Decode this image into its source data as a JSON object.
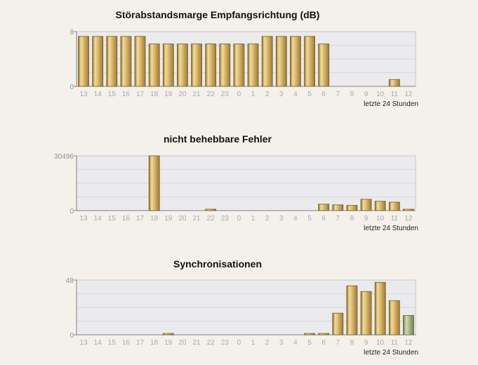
{
  "chart_data": [
    {
      "type": "bar",
      "title": "Störabstandsmarge Empfangsrichtung (dB)",
      "xlabel": "letzte 24 Stunden",
      "ytick_labels": [
        "8",
        "0"
      ],
      "ylim": [
        0,
        8
      ],
      "grid": true,
      "categories": [
        "13",
        "14",
        "15",
        "16",
        "17",
        "18",
        "19",
        "20",
        "21",
        "22",
        "23",
        "0",
        "1",
        "2",
        "3",
        "4",
        "5",
        "6",
        "7",
        "8",
        "9",
        "10",
        "11",
        "12"
      ],
      "values": [
        7.3,
        7.3,
        7.3,
        7.3,
        7.3,
        6.2,
        6.2,
        6.2,
        6.2,
        6.2,
        6.2,
        6.2,
        6.2,
        7.3,
        7.3,
        7.3,
        7.3,
        6.2,
        0,
        0,
        0,
        0,
        1.0,
        0
      ],
      "bar_color": "#c9a55a"
    },
    {
      "type": "bar",
      "title": "nicht behebbare Fehler",
      "xlabel": "letzte 24 Stunden",
      "ytick_labels": [
        "30496",
        "0"
      ],
      "ylim": [
        0,
        30496
      ],
      "grid": true,
      "categories": [
        "13",
        "14",
        "15",
        "16",
        "17",
        "18",
        "19",
        "20",
        "21",
        "22",
        "23",
        "0",
        "1",
        "2",
        "3",
        "4",
        "5",
        "6",
        "7",
        "8",
        "9",
        "10",
        "11",
        "12"
      ],
      "values": [
        0,
        0,
        0,
        0,
        0,
        30496,
        0,
        0,
        0,
        300,
        0,
        0,
        0,
        0,
        0,
        0,
        0,
        3600,
        3200,
        2900,
        6300,
        5200,
        4700,
        300
      ],
      "bar_color": "#c9a55a"
    },
    {
      "type": "bar",
      "title": "Synchronisationen",
      "xlabel": "letzte 24 Stunden",
      "ytick_labels": [
        "48",
        "0"
      ],
      "ylim": [
        0,
        48
      ],
      "grid": true,
      "categories": [
        "13",
        "14",
        "15",
        "16",
        "17",
        "18",
        "19",
        "20",
        "21",
        "22",
        "23",
        "0",
        "1",
        "2",
        "3",
        "4",
        "5",
        "6",
        "7",
        "8",
        "9",
        "10",
        "11",
        "12"
      ],
      "values": [
        0,
        0,
        0,
        0,
        0,
        0,
        1,
        0,
        0,
        0,
        0,
        0,
        0,
        0,
        0,
        0,
        1,
        1,
        19,
        43,
        38,
        46,
        30,
        17
      ],
      "bar_color": "#c9a55a",
      "highlight_color": "#9fb07a",
      "highlight_index": 23
    }
  ]
}
